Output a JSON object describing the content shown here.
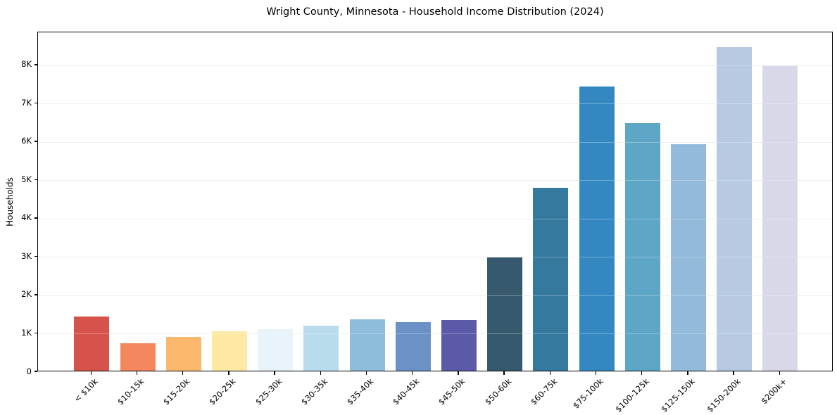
{
  "chart_data": {
    "type": "bar",
    "title": "Wright County, Minnesota - Household Income Distribution (2024)",
    "xlabel": "",
    "ylabel": "Households",
    "categories": [
      "< $10k",
      "$10-15k",
      "$15-20k",
      "$20-25k",
      "$25-30k",
      "$30-35k",
      "$35-40k",
      "$40-45k",
      "$45-50k",
      "$50-60k",
      "$60-75k",
      "$75-100k",
      "$100-125k",
      "$125-150k",
      "$150-200k",
      "$200k+"
    ],
    "values": [
      1415,
      710,
      880,
      1030,
      1090,
      1170,
      1340,
      1265,
      1320,
      2950,
      4770,
      7420,
      6460,
      5910,
      8440,
      7970
    ],
    "bar_colors": [
      "#d6534c",
      "#f5875f",
      "#fcb96d",
      "#fde9a2",
      "#e8f4f9",
      "#b9dcec",
      "#8ebcdc",
      "#6b92c7",
      "#5a5aa8",
      "#36596d",
      "#35799f",
      "#3488c1",
      "#5da6c6",
      "#94badb",
      "#b8c9e2",
      "#d8d9e8"
    ],
    "yticks": [
      {
        "value": 0,
        "label": "0"
      },
      {
        "value": 1000,
        "label": "1K"
      },
      {
        "value": 2000,
        "label": "2K"
      },
      {
        "value": 3000,
        "label": "3K"
      },
      {
        "value": 4000,
        "label": "4K"
      },
      {
        "value": 5000,
        "label": "5K"
      },
      {
        "value": 6000,
        "label": "6K"
      },
      {
        "value": 7000,
        "label": "7K"
      },
      {
        "value": 8000,
        "label": "8K"
      }
    ],
    "ylim": [
      0,
      8860
    ],
    "grid": "horizontal",
    "legend": "none",
    "colors": {
      "background": "#ffffff",
      "spine": "#000000",
      "gridline": "#e8e8e8",
      "text": "#000000"
    }
  }
}
